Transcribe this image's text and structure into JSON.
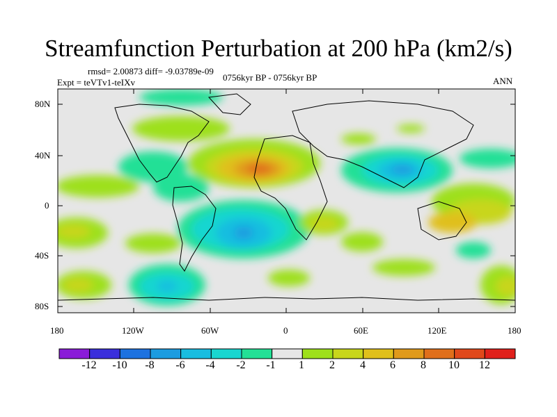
{
  "title": "Streamfunction Perturbation at 200 hPa (km2/s)",
  "stats": "rmsd= 2.00873  diff= -9.03789e-09",
  "experiment": "Expt = teVTv1-teIXv",
  "period": "0756kyr BP - 0756kyr BP",
  "season": "ANN",
  "lat_ticks": [
    "80N",
    "40N",
    "0",
    "40S",
    "80S"
  ],
  "lon_ticks": [
    "180",
    "120W",
    "60W",
    "0",
    "60E",
    "120E",
    "180"
  ],
  "colorbar": {
    "labels": [
      "-12",
      "-10",
      "-8",
      "-6",
      "-4",
      "-2",
      "-1",
      "1",
      "2",
      "4",
      "6",
      "8",
      "10",
      "12"
    ],
    "colors": [
      "#8a1bd8",
      "#3a2fdc",
      "#1d72e0",
      "#1c9ce0",
      "#19bde0",
      "#19d6d0",
      "#23e096",
      "#e6e6e6",
      "#9ee01b",
      "#c8d61b",
      "#e0c01b",
      "#e09a1b",
      "#e06f1b",
      "#e0481b",
      "#e0201b"
    ]
  }
}
